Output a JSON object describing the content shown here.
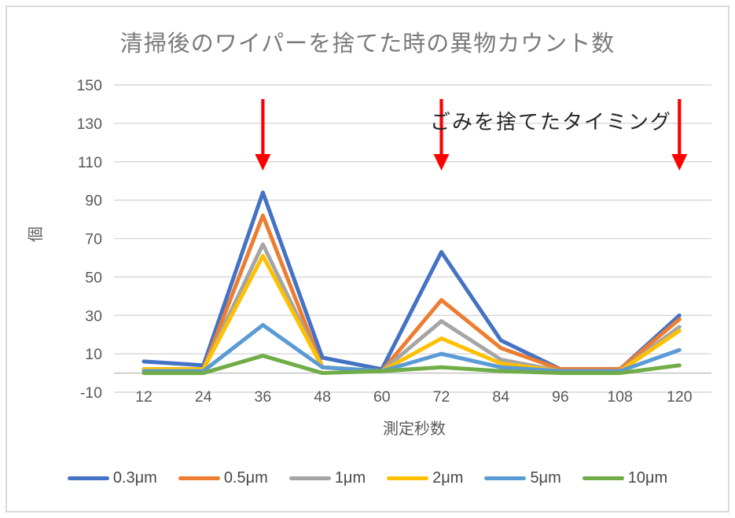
{
  "title": "清掃後のワイパーを捨てた時の異物カウント数",
  "annotation": {
    "text": "ごみを捨てたタイミング",
    "text_color": "#262626",
    "arrow_color": "#FF0000",
    "arrow_categories": [
      36,
      72,
      120
    ]
  },
  "colors": {
    "gridline": "#D9D9D9",
    "axis_line": "#C3C3C3",
    "frame_border": "#D9D9D9",
    "title_text": "#7A7A7A",
    "axis_text": "#595959",
    "legend_text": "#474747",
    "background": "#FFFFFF"
  },
  "chart_data": {
    "type": "line",
    "title": "清掃後のワイパーを捨てた時の異物カウント数",
    "xlabel": "測定秒数",
    "ylabel": "個",
    "x": [
      12,
      24,
      36,
      48,
      60,
      72,
      84,
      96,
      108,
      120
    ],
    "y_ticks": [
      150,
      130,
      110,
      90,
      70,
      50,
      30,
      10,
      -10
    ],
    "ylim": [
      -10,
      155
    ],
    "grid": true,
    "legend_position": "bottom",
    "series": [
      {
        "name": "0.3μm",
        "color": "#4472C4",
        "values": [
          6,
          4,
          94,
          8,
          2,
          63,
          17,
          2,
          2,
          30
        ]
      },
      {
        "name": "0.5μm",
        "color": "#ED7D31",
        "values": [
          2,
          2,
          82,
          3,
          1,
          38,
          13,
          2,
          2,
          28
        ]
      },
      {
        "name": "1μm",
        "color": "#A5A5A5",
        "values": [
          2,
          2,
          67,
          3,
          1,
          27,
          7,
          1,
          1,
          24
        ]
      },
      {
        "name": "2μm",
        "color": "#FFC000",
        "values": [
          2,
          2,
          61,
          3,
          1,
          18,
          5,
          1,
          1,
          22
        ]
      },
      {
        "name": "5μm",
        "color": "#5B9BD5",
        "values": [
          1,
          1,
          25,
          3,
          1,
          10,
          3,
          1,
          1,
          12
        ]
      },
      {
        "name": "10μm",
        "color": "#70AD47",
        "values": [
          0,
          0,
          9,
          0,
          1,
          3,
          1,
          0,
          0,
          4
        ]
      }
    ]
  }
}
